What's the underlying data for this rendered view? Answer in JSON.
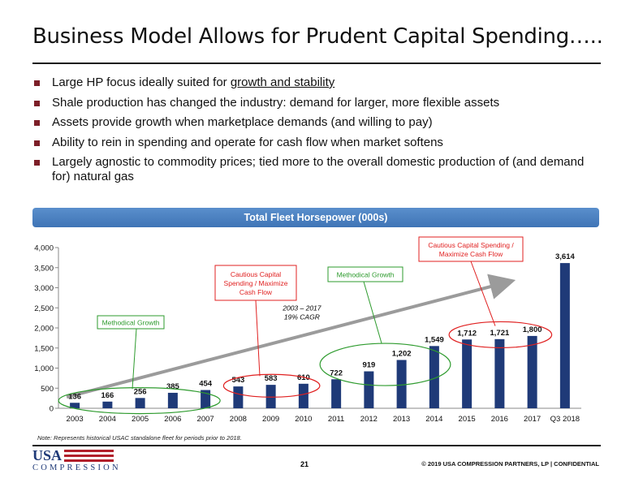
{
  "slide": {
    "title": "Business Model Allows for Prudent Capital Spending…..",
    "bullets": [
      {
        "text": "Large HP focus ideally suited for ",
        "emphasis": "growth and stability"
      },
      {
        "text": "Shale production has changed the industry: demand for larger, more flexible assets"
      },
      {
        "text": "Assets provide growth when marketplace demands (and willing to pay)"
      },
      {
        "text": "Ability to rein in spending and operate for cash flow when market softens"
      },
      {
        "text": "Largely agnostic to commodity prices; tied more to the overall domestic production of (and demand for) natural gas"
      }
    ],
    "banner": "Total Fleet Horsepower (000s)",
    "note": "Note: Represents historical USAC standalone fleet for periods prior to 2018.",
    "page_number": "21",
    "copyright": "© 2019 USA COMPRESSION PARTNERS, LP    |  CONFIDENTIAL",
    "logo": {
      "top": "USA",
      "bottom": "COMPRESSION"
    }
  },
  "chart_data": {
    "type": "bar",
    "categories": [
      "2003",
      "2004",
      "2005",
      "2006",
      "2007",
      "2008",
      "2009",
      "2010",
      "2011",
      "2012",
      "2013",
      "2014",
      "2015",
      "2016",
      "2017",
      "Q3 2018"
    ],
    "values": [
      136,
      166,
      256,
      385,
      454,
      543,
      583,
      610,
      722,
      919,
      1202,
      1549,
      1712,
      1721,
      1800,
      3614
    ],
    "value_labels": [
      "136",
      "166",
      "256",
      "385",
      "454",
      "543",
      "583",
      "610",
      "722",
      "919",
      "1,202",
      "1,549",
      "1,712",
      "1,721",
      "1,800",
      "3,614"
    ],
    "ylim": [
      0,
      4000
    ],
    "yticks": [
      0,
      500,
      1000,
      1500,
      2000,
      2500,
      3000,
      3500,
      4000
    ],
    "ytick_labels": [
      "0",
      "500",
      "1,000",
      "1,500",
      "2,000",
      "2,500",
      "3,000",
      "3,500",
      "4,000"
    ],
    "bar_color": "#1f3a78",
    "trend_label": [
      "2003 – 2017",
      "19% CAGR"
    ],
    "annotations": [
      {
        "label": "Methodical Growth",
        "color": "#2e9b2e",
        "years": [
          "2003",
          "2007"
        ]
      },
      {
        "label": [
          "Cautious Capital",
          "Spending / Maximize",
          "Cash Flow"
        ],
        "color": "#e02020",
        "years": [
          "2008",
          "2010"
        ]
      },
      {
        "label": "Methodical Growth",
        "color": "#2e9b2e",
        "years": [
          "2011",
          "2014"
        ]
      },
      {
        "label": [
          "Cautious Capital Spending /",
          "Maximize Cash Flow"
        ],
        "color": "#e02020",
        "years": [
          "2015",
          "2017"
        ]
      }
    ]
  }
}
